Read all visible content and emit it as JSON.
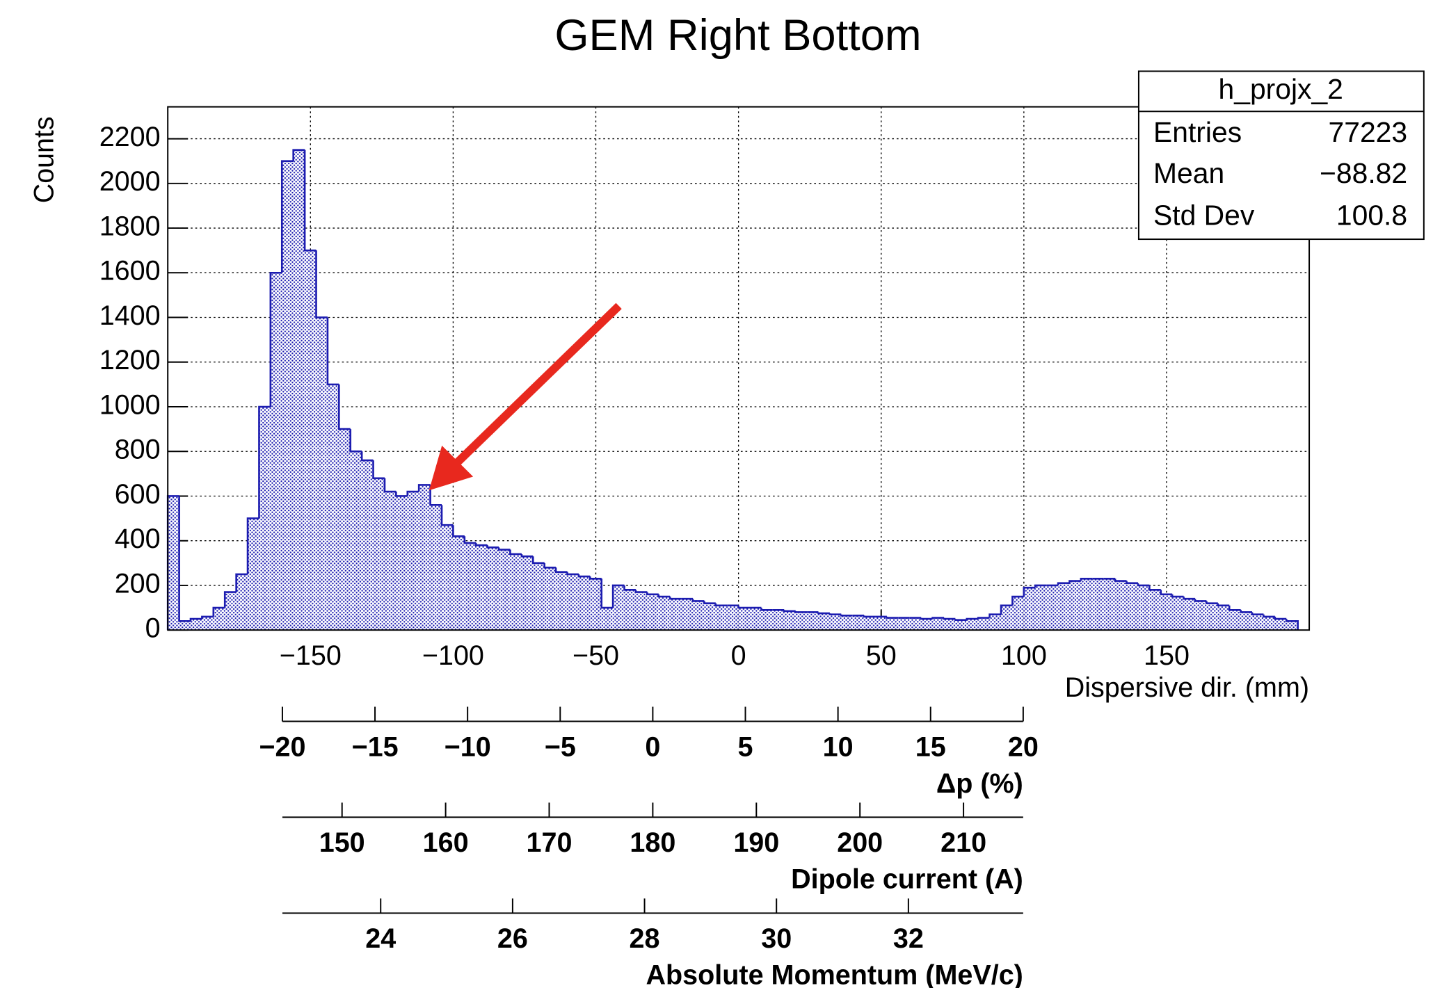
{
  "chart_data": {
    "type": "histogram",
    "title": "GEM Right Bottom",
    "x_label": "Dispersive dir. (mm)",
    "y_label": "Counts",
    "color": "#1c1cb0",
    "grid": true,
    "xlim": [
      -200,
      200
    ],
    "ylim": [
      0,
      2343
    ],
    "xticks": [
      {
        "value": -150,
        "label": "−150"
      },
      {
        "value": -100,
        "label": "−100"
      },
      {
        "value": -50,
        "label": "−50"
      },
      0,
      50,
      100,
      150
    ],
    "yticks": [
      0,
      200,
      400,
      600,
      800,
      1000,
      1200,
      1400,
      1600,
      1800,
      2000,
      2200
    ],
    "bins": [
      -200,
      -196,
      -192,
      -188,
      -184,
      -180,
      -176,
      -172,
      -168,
      -164,
      -160,
      -156,
      -152,
      -148,
      -144,
      -140,
      -136,
      -132,
      -128,
      -124,
      -120,
      -116,
      -112,
      -108,
      -104,
      -100,
      -96,
      -92,
      -88,
      -84,
      -80,
      -76,
      -72,
      -68,
      -64,
      -60,
      -56,
      -52,
      -48,
      -44,
      -40,
      -36,
      -32,
      -28,
      -24,
      -20,
      -16,
      -12,
      -8,
      -4,
      0,
      4,
      8,
      12,
      16,
      20,
      24,
      28,
      32,
      36,
      40,
      44,
      48,
      52,
      56,
      60,
      64,
      68,
      72,
      76,
      80,
      84,
      88,
      92,
      96,
      100,
      104,
      108,
      112,
      116,
      120,
      124,
      128,
      132,
      136,
      140,
      144,
      148,
      152,
      156,
      160,
      164,
      168,
      172,
      176,
      180,
      184,
      188,
      192,
      196
    ],
    "values": [
      600,
      40,
      50,
      60,
      100,
      170,
      250,
      500,
      1000,
      1600,
      2100,
      2150,
      1700,
      1400,
      1100,
      900,
      800,
      760,
      680,
      620,
      600,
      620,
      650,
      560,
      470,
      420,
      390,
      380,
      370,
      360,
      340,
      330,
      300,
      280,
      260,
      250,
      240,
      230,
      100,
      200,
      180,
      170,
      160,
      150,
      140,
      140,
      130,
      120,
      110,
      110,
      100,
      100,
      90,
      90,
      85,
      80,
      80,
      75,
      70,
      65,
      65,
      60,
      60,
      55,
      55,
      55,
      50,
      55,
      50,
      45,
      50,
      55,
      70,
      110,
      150,
      190,
      200,
      200,
      210,
      220,
      230,
      230,
      230,
      220,
      210,
      200,
      180,
      160,
      150,
      140,
      130,
      120,
      110,
      90,
      80,
      70,
      60,
      50,
      40
    ],
    "stats": {
      "title": "h_projx_2",
      "rows": [
        {
          "label": "Entries",
          "value": "77223"
        },
        {
          "label": "Mean",
          "value": "−88.82"
        },
        {
          "label": "Std Dev",
          "value": "100.8"
        }
      ]
    },
    "extra_axes": [
      {
        "label": "Δp (%)",
        "lim": [
          -20,
          20
        ],
        "ticks": [
          {
            "value": -20,
            "label": "−20"
          },
          {
            "value": -15,
            "label": "−15"
          },
          {
            "value": -10,
            "label": "−10"
          },
          {
            "value": -5,
            "label": "−5"
          },
          0,
          5,
          10,
          15,
          20
        ]
      },
      {
        "label": "Dipole current (A)",
        "lim": [
          144.24,
          215.76
        ],
        "ticks": [
          150,
          160,
          170,
          180,
          190,
          200,
          210
        ]
      },
      {
        "label": "Absolute Momentum (MeV/c)",
        "lim": [
          22.51,
          33.74
        ],
        "ticks": [
          24,
          26,
          28,
          30,
          32
        ]
      }
    ]
  }
}
